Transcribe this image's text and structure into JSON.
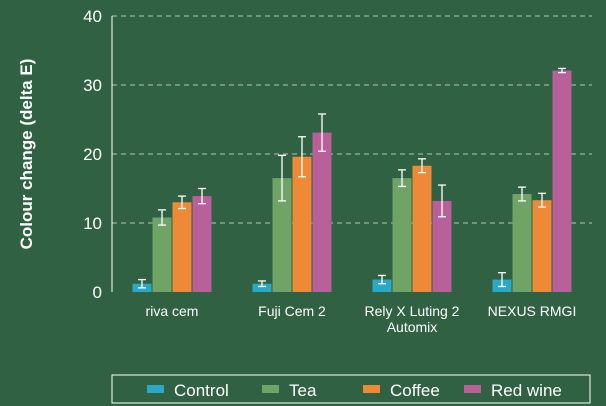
{
  "chart_data": {
    "type": "bar",
    "title": "",
    "xlabel": "",
    "ylabel": "Colour change (delta E)",
    "ylim": [
      0,
      40
    ],
    "yticks": [
      0,
      10,
      20,
      30,
      40
    ],
    "grid": true,
    "legend_position": "bottom",
    "categories": [
      [
        "riva cem"
      ],
      [
        "Fuji Cem 2"
      ],
      [
        "Rely X Luting 2",
        "Automix"
      ],
      [
        "NEXUS RMGI"
      ]
    ],
    "series": [
      {
        "name": "Control",
        "color": "#2aa9c7",
        "values": [
          1.2,
          1.2,
          1.8,
          1.8
        ],
        "errors": [
          0.6,
          0.4,
          0.6,
          1.0
        ]
      },
      {
        "name": "Tea",
        "color": "#6fa466",
        "values": [
          10.8,
          16.5,
          16.5,
          14.2
        ],
        "errors": [
          1.1,
          3.3,
          1.2,
          1.0
        ]
      },
      {
        "name": "Coffee",
        "color": "#ee8a37",
        "values": [
          13.0,
          19.6,
          18.3,
          13.3
        ],
        "errors": [
          0.9,
          2.9,
          1.0,
          1.0
        ]
      },
      {
        "name": "Red wine",
        "color": "#b9609b",
        "values": [
          13.9,
          23.1,
          13.2,
          32.1
        ],
        "errors": [
          1.1,
          2.7,
          2.3,
          0.3
        ]
      }
    ]
  }
}
